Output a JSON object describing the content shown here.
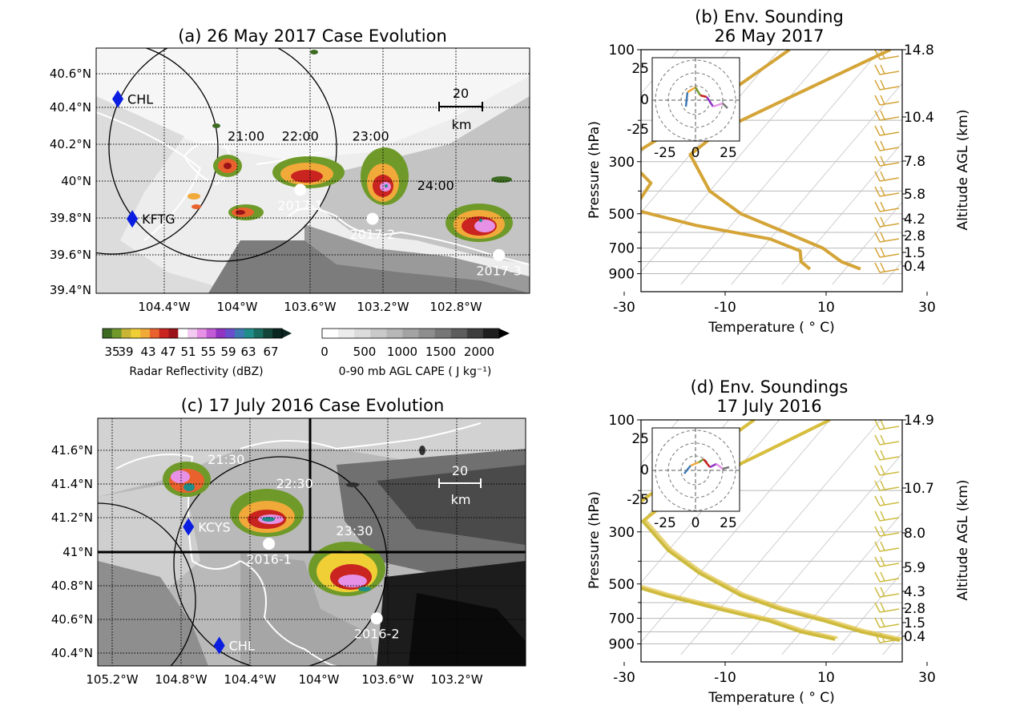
{
  "chart_data": [
    {
      "panel": "a",
      "type": "map",
      "title": "(a) 26 May 2017 Case Evolution",
      "lon_ticks": [
        "104.4°W",
        "104°W",
        "103.6°W",
        "103.2°W",
        "102.8°W"
      ],
      "lat_ticks": [
        "40.6°N",
        "40.4°N",
        "40.2°N",
        "40°N",
        "39.8°N",
        "39.6°N",
        "39.4°N"
      ],
      "xlim": [
        -104.75,
        -102.35
      ],
      "ylim": [
        39.38,
        40.73
      ],
      "radars": [
        {
          "name": "CHL",
          "lon": -104.63,
          "lat": 40.45
        },
        {
          "name": "KFTG",
          "lon": -104.55,
          "lat": 39.79
        }
      ],
      "sites": [
        {
          "name": "2017-1",
          "lon": -103.62,
          "lat": 39.95
        },
        {
          "name": "2017-2",
          "lon": -103.22,
          "lat": 39.79
        },
        {
          "name": "2017-3",
          "lon": -102.52,
          "lat": 39.59
        }
      ],
      "times": [
        {
          "label": "21:00",
          "lon": -103.92,
          "lat": 40.22
        },
        {
          "label": "22:00",
          "lon": -103.62,
          "lat": 40.22
        },
        {
          "label": "23:00",
          "lon": -103.23,
          "lat": 40.22
        },
        {
          "label": "24:00",
          "lon": -102.87,
          "lat": 39.95
        }
      ],
      "scale_bar": {
        "value": "20",
        "unit": "km"
      }
    },
    {
      "panel": "c",
      "type": "map",
      "title": "(c) 17 July 2016 Case Evolution",
      "lon_ticks": [
        "105.2°W",
        "104.8°W",
        "104.4°W",
        "104°W",
        "103.6°W",
        "103.2°W"
      ],
      "lat_ticks": [
        "41.6°N",
        "41.4°N",
        "41.2°N",
        "41°N",
        "40.8°N",
        "40.6°N",
        "40.4°N"
      ],
      "xlim": [
        -105.35,
        -102.85
      ],
      "ylim": [
        40.33,
        41.79
      ],
      "radars": [
        {
          "name": "KCYS",
          "lon": -104.82,
          "lat": 41.15
        },
        {
          "name": "CHL",
          "lon": -104.64,
          "lat": 40.45
        }
      ],
      "sites": [
        {
          "name": "2016-1",
          "lon": -104.35,
          "lat": 41.05
        },
        {
          "name": "2016-2",
          "lon": -103.72,
          "lat": 40.61
        }
      ],
      "times": [
        {
          "label": "21:30",
          "lon": -104.6,
          "lat": 41.52
        },
        {
          "label": "22:30",
          "lon": -104.2,
          "lat": 41.38
        },
        {
          "label": "23:30",
          "lon": -103.85,
          "lat": 41.1
        }
      ],
      "scale_bar": {
        "value": "20",
        "unit": "km"
      }
    },
    {
      "panel": "b",
      "type": "line",
      "subtype": "skew-T",
      "title": [
        "(b) Env. Sounding",
        "26 May 2017"
      ],
      "xlabel": "Temperature ( ° C)",
      "ylabel": "Pressure (hPa)",
      "y2label": "Altitude AGL (km)",
      "x_ticks": [
        -30,
        -10,
        10,
        30
      ],
      "y_ticks": [
        100,
        300,
        500,
        700,
        900
      ],
      "alt_labels": [
        "14.8",
        "10.4",
        "7.8",
        "5.8",
        "4.2",
        "2.8",
        "1.5",
        "0.4"
      ],
      "hodograph_ticks": [
        -25,
        0,
        25
      ],
      "series": [
        {
          "role": "temperature",
          "color": "#d4a437",
          "points": [
            [
              -18,
              100
            ],
            [
              -30,
              160
            ],
            [
              -38,
              220
            ],
            [
              -40,
              280
            ],
            [
              -30,
              400
            ],
            [
              -20,
              500
            ],
            [
              -8,
              600
            ],
            [
              2,
              700
            ],
            [
              8,
              800
            ],
            [
              13,
              860
            ]
          ]
        },
        {
          "role": "dewpoint",
          "color": "#d4a437",
          "points": [
            [
              -38,
              100
            ],
            [
              -46,
              200
            ],
            [
              -52,
              290
            ],
            [
              -43,
              370
            ],
            [
              -42,
              480
            ],
            [
              -27,
              560
            ],
            [
              -10,
              640
            ],
            [
              -2,
              720
            ],
            [
              0,
              800
            ],
            [
              3,
              860
            ]
          ]
        }
      ]
    },
    {
      "panel": "d",
      "type": "line",
      "subtype": "skew-T",
      "title": [
        "(d) Env. Soundings",
        "17 July 2016"
      ],
      "xlabel": "Temperature ( ° C)",
      "ylabel": "Pressure (hPa)",
      "y2label": "Altitude AGL (km)",
      "x_ticks": [
        -30,
        -10,
        10,
        30
      ],
      "y_ticks": [
        100,
        300,
        500,
        700,
        900
      ],
      "alt_labels": [
        "14.9",
        "10.7",
        "8.0",
        "5.9",
        "4.3",
        "2.8",
        "1.5",
        "0.4"
      ],
      "hodograph_ticks": [
        -25,
        0,
        25
      ],
      "series": [
        {
          "role": "temperature",
          "color": "#cdbb3f",
          "points": [
            [
              -30,
              100
            ],
            [
              -38,
              140
            ],
            [
              -48,
              210
            ],
            [
              -50,
              270
            ],
            [
              -40,
              360
            ],
            [
              -30,
              450
            ],
            [
              -18,
              560
            ],
            [
              -8,
              640
            ],
            [
              3,
              720
            ],
            [
              12,
              800
            ],
            [
              21,
              870
            ]
          ]
        },
        {
          "role": "dewpoint",
          "color": "#cdbb3f",
          "points": [
            [
              -45,
              100
            ],
            [
              -55,
              250
            ],
            [
              -60,
              270
            ],
            [
              -63,
              370
            ],
            [
              -54,
              420
            ],
            [
              -46,
              480
            ],
            [
              -33,
              560
            ],
            [
              -20,
              640
            ],
            [
              -8,
              720
            ],
            [
              0,
              800
            ],
            [
              8,
              860
            ]
          ]
        }
      ]
    }
  ],
  "colorbars": {
    "reflectivity": {
      "label": "Radar Reflectivity (dBZ)",
      "ticks": [
        "35",
        "39",
        "43",
        "47",
        "51",
        "55",
        "59",
        "63",
        "67"
      ],
      "colors": [
        "#3d6b22",
        "#6f9a2a",
        "#c8b536",
        "#f0cf36",
        "#f1a93a",
        "#e9622d",
        "#c9241f",
        "#9b1319",
        "#ffffff",
        "#f2c9f0",
        "#e690e6",
        "#c25bd6",
        "#8f34c3",
        "#6a4fcd",
        "#3e79b4",
        "#1f8e8a",
        "#196c60",
        "#14453a",
        "#0b2520"
      ]
    },
    "cape": {
      "label": "0-90 mb AGL CAPE ( J kg⁻¹)",
      "ticks": [
        "0",
        "500",
        "1000",
        "1500",
        "2000"
      ],
      "colors": [
        "#ffffff",
        "#ececec",
        "#dcdcdc",
        "#c9c9c9",
        "#b7b7b7",
        "#a3a3a3",
        "#8e8e8e",
        "#777777",
        "#5d5d5d",
        "#3e3e3e",
        "#1f1f1f"
      ]
    }
  }
}
